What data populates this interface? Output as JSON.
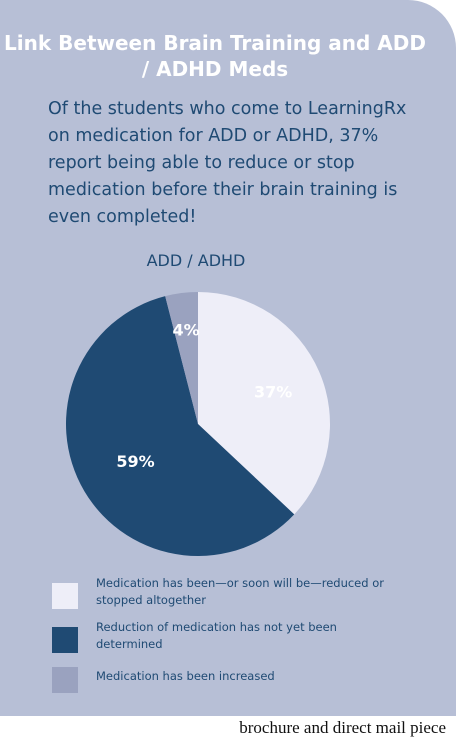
{
  "title": "Link Between Brain Training and ADD / ADHD Meds",
  "intro": "Of the students who come to LearningRx on medication for ADD or ADHD, 37% report being able to reduce or stop medication before their brain training is even completed!",
  "caption": "brochure and direct mail piece",
  "chart_data": {
    "type": "pie",
    "title": "ADD / ADHD",
    "slices": [
      {
        "name": "Medication has been—or soon will be—reduced or stopped altogether",
        "value": 37,
        "label": "37%",
        "color": "#eeeef8"
      },
      {
        "name": "Reduction of medication has not yet been determined",
        "value": 59,
        "label": "59%",
        "color": "#1f4a73"
      },
      {
        "name": "Medication has been increased",
        "value": 4,
        "label": "4%",
        "color": "#9aa2bf"
      }
    ],
    "legend_position": "bottom"
  }
}
